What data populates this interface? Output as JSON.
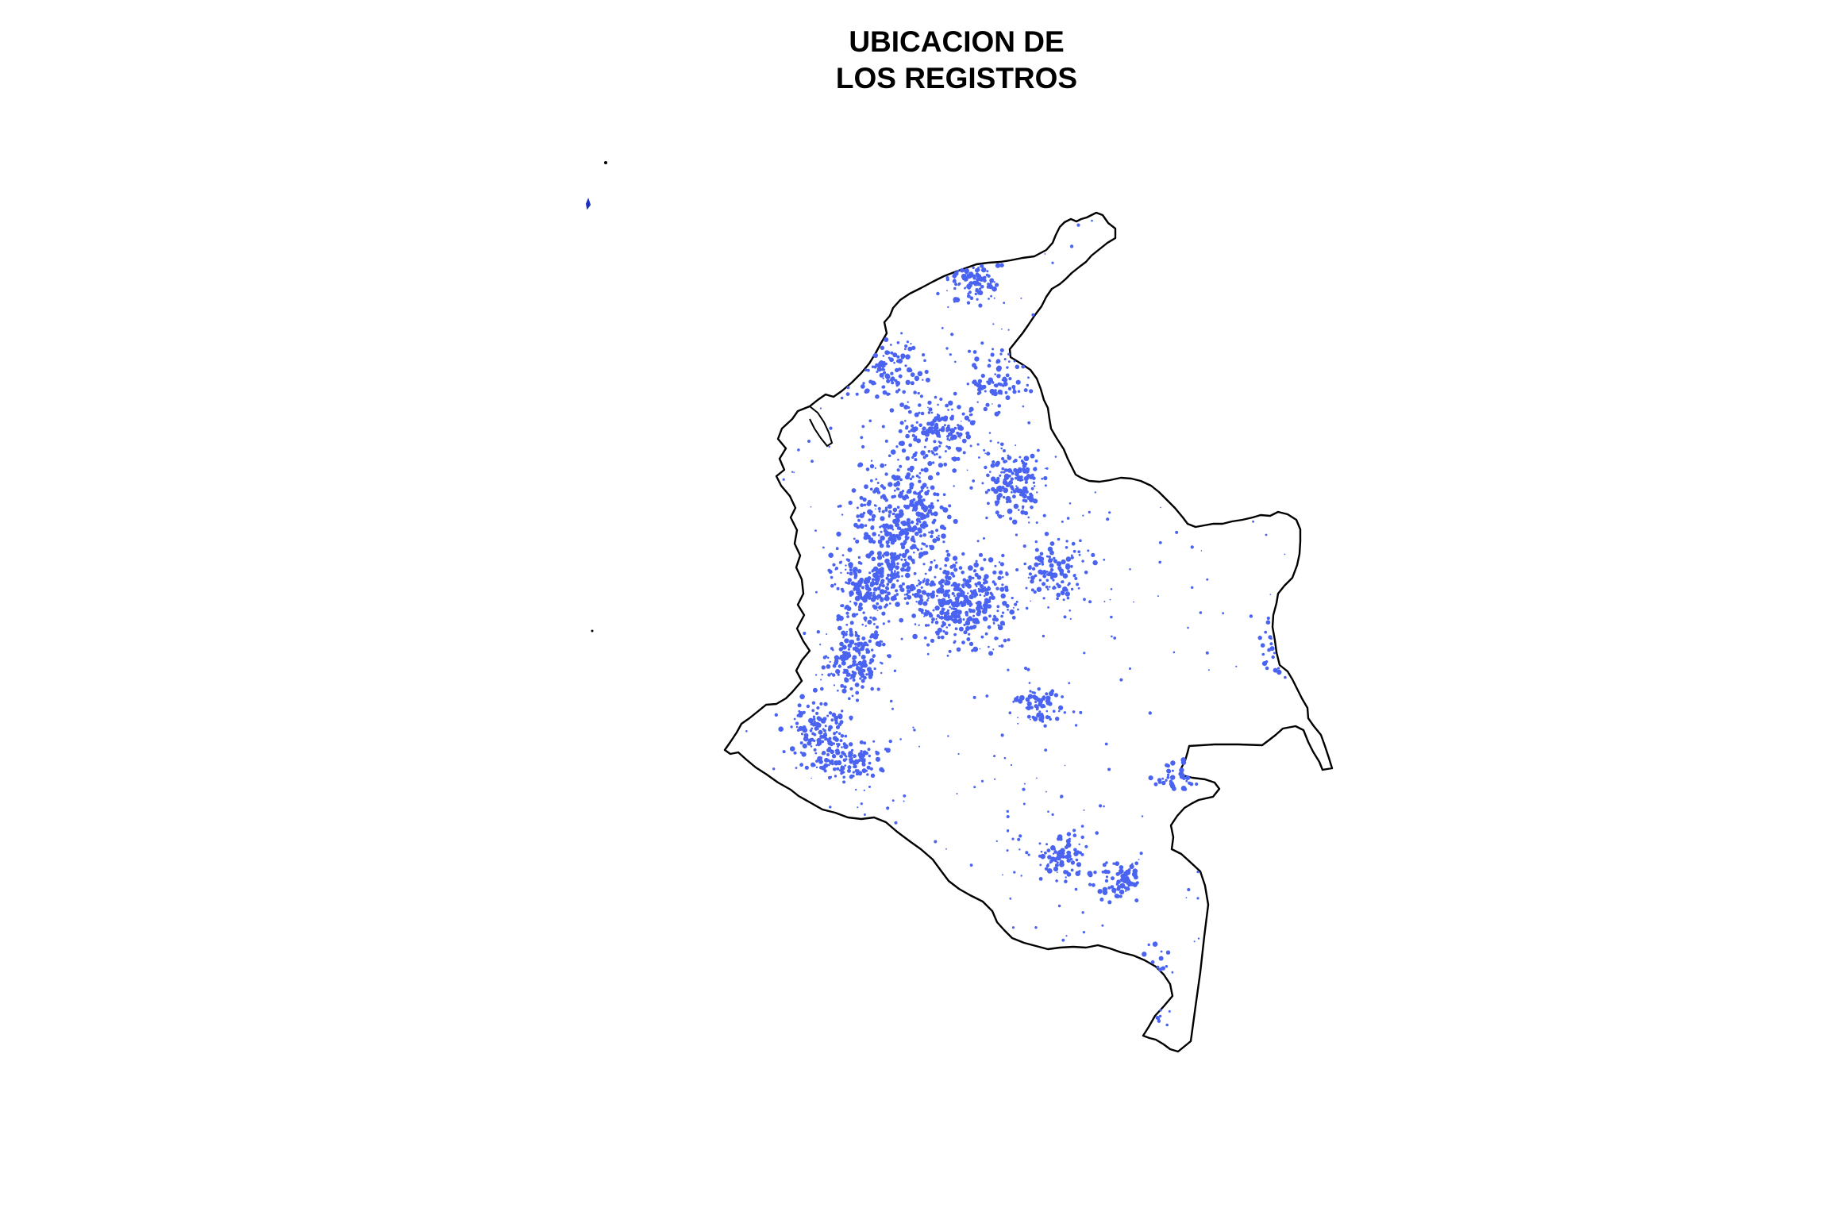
{
  "map": {
    "title_line_1": "UBICACION DE",
    "title_line_2": "LOS REGISTROS",
    "colors": {
      "background": "#ffffff",
      "outline": "#000000",
      "points": "#4a63f0",
      "points_dark": "#1f2fbf"
    },
    "layers": [
      "country-outline",
      "record-points"
    ]
  }
}
